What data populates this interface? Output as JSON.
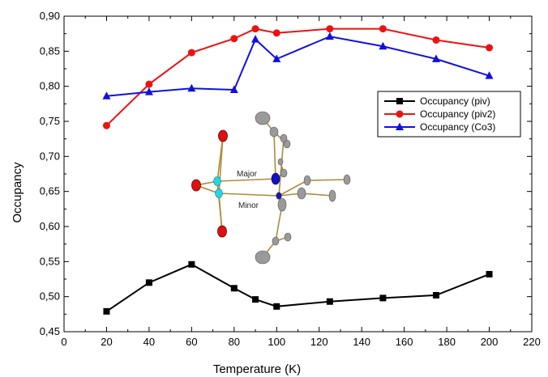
{
  "chart_data": {
    "type": "line",
    "xlabel": "Temperature (K)",
    "ylabel": "Occupancy",
    "xlim": [
      0,
      220
    ],
    "ylim": [
      0.45,
      0.9
    ],
    "xticks": [
      "0",
      "20",
      "40",
      "60",
      "80",
      "100",
      "120",
      "140",
      "160",
      "180",
      "200",
      "220"
    ],
    "yticks": [
      "0,45",
      "0,50",
      "0,55",
      "0,60",
      "0,65",
      "0,70",
      "0,75",
      "0,80",
      "0,85",
      "0,90"
    ],
    "legend_position": "right",
    "grid": false,
    "series": [
      {
        "name": "Occupancy (piv)",
        "color": "#000000",
        "marker": "square",
        "x": [
          20,
          40,
          60,
          80,
          90,
          100,
          125,
          150,
          175,
          200
        ],
        "y": [
          0.479,
          0.52,
          0.546,
          0.512,
          0.496,
          0.486,
          0.493,
          0.498,
          0.502,
          0.532
        ]
      },
      {
        "name": "Occupancy (piv2)",
        "color": "#ee1111",
        "marker": "circle",
        "x": [
          20,
          40,
          60,
          80,
          90,
          100,
          125,
          150,
          175,
          200
        ],
        "y": [
          0.744,
          0.803,
          0.848,
          0.868,
          0.882,
          0.876,
          0.882,
          0.882,
          0.866,
          0.855
        ]
      },
      {
        "name": "Occupancy (Co3)",
        "color": "#1111dd",
        "marker": "triangle",
        "x": [
          20,
          40,
          60,
          80,
          90,
          100,
          125,
          150,
          175,
          200
        ],
        "y": [
          0.786,
          0.792,
          0.797,
          0.795,
          0.867,
          0.839,
          0.871,
          0.857,
          0.839,
          0.815
        ]
      }
    ],
    "inset_labels": {
      "major": "Major",
      "minor": "Minor"
    }
  }
}
